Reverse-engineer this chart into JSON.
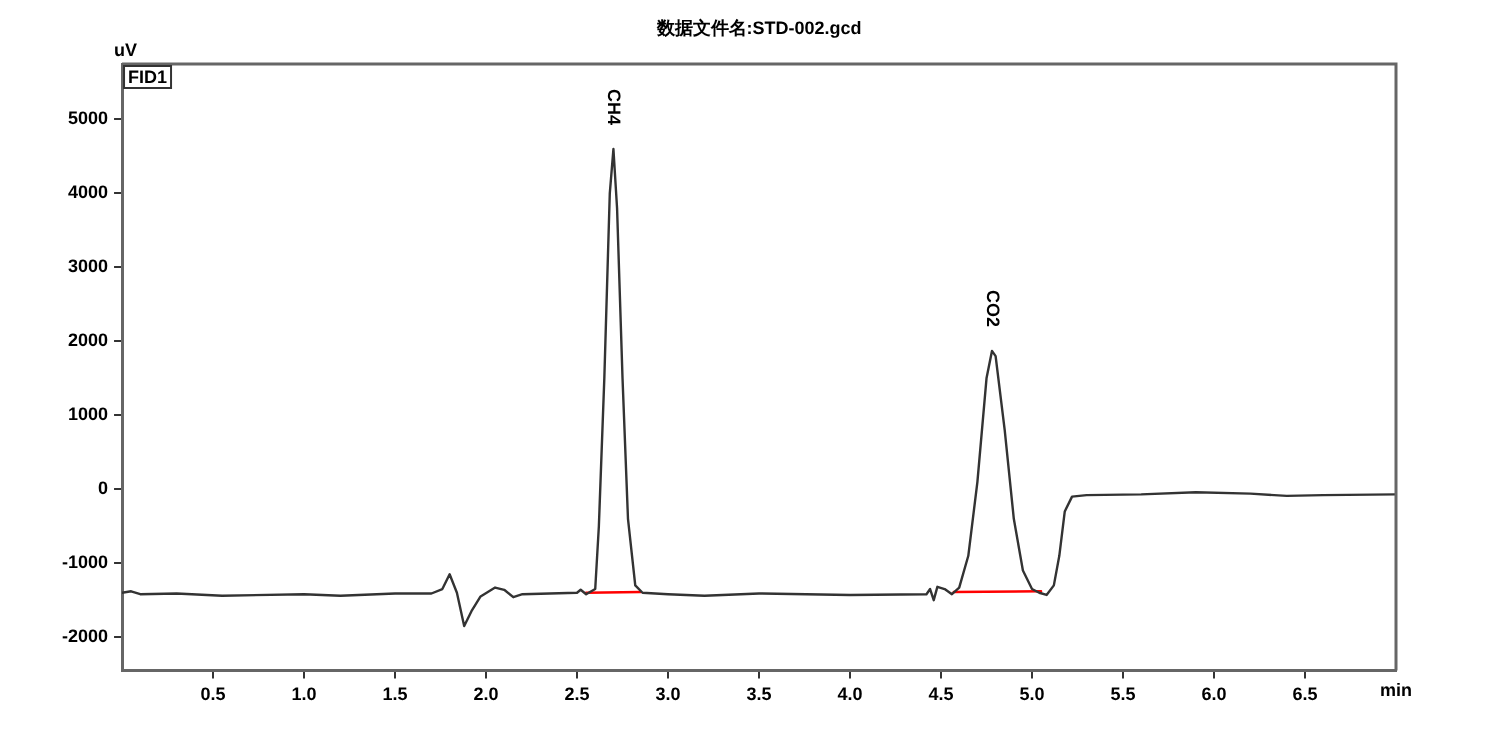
{
  "chart_data": {
    "type": "line",
    "title": "数据文件名:STD-002.gcd",
    "xlabel": "min",
    "ylabel": "uV",
    "annotations": [
      "FID1",
      {
        "text": "CH4",
        "x": 2.7,
        "y": 4600
      },
      {
        "text": "CO2",
        "x": 4.78,
        "y": 1870
      }
    ],
    "x": [
      0,
      0.05,
      0.1,
      0.3,
      0.55,
      1.0,
      1.2,
      1.5,
      1.7,
      1.76,
      1.8,
      1.84,
      1.88,
      1.92,
      1.97,
      2.05,
      2.1,
      2.15,
      2.2,
      2.5,
      2.52,
      2.55,
      2.6,
      2.62,
      2.65,
      2.68,
      2.7,
      2.72,
      2.75,
      2.78,
      2.82,
      2.86,
      3.0,
      3.2,
      3.5,
      4.0,
      4.42,
      4.44,
      4.46,
      4.48,
      4.52,
      4.56,
      4.6,
      4.65,
      4.7,
      4.75,
      4.78,
      4.8,
      4.85,
      4.9,
      4.95,
      5.0,
      5.04,
      5.08,
      5.12,
      5.15,
      5.18,
      5.22,
      5.3,
      5.6,
      5.9,
      6.2,
      6.4,
      6.6,
      7.0
    ],
    "series": [
      {
        "color": "#333333",
        "values": [
          -1400,
          -1380,
          -1420,
          -1410,
          -1440,
          -1420,
          -1440,
          -1410,
          -1410,
          -1350,
          -1150,
          -1400,
          -1850,
          -1650,
          -1450,
          -1330,
          -1360,
          -1460,
          -1420,
          -1400,
          -1360,
          -1420,
          -1350,
          -500,
          1500,
          4000,
          4600,
          3800,
          1500,
          -400,
          -1300,
          -1400,
          -1420,
          -1440,
          -1410,
          -1430,
          -1420,
          -1350,
          -1500,
          -1320,
          -1350,
          -1420,
          -1330,
          -900,
          100,
          1500,
          1870,
          1800,
          800,
          -400,
          -1100,
          -1350,
          -1400,
          -1430,
          -1300,
          -900,
          -300,
          -100,
          -80,
          -70,
          -40,
          -60,
          -90,
          -80,
          -70
        ]
      },
      {
        "type": "line",
        "color": "#ff0000",
        "x": [
          2.55,
          2.85
        ],
        "values": [
          -1400,
          -1390
        ]
      },
      {
        "type": "line",
        "color": "#ff0000",
        "x": [
          4.57,
          5.05
        ],
        "values": [
          -1390,
          -1380
        ]
      }
    ],
    "xlim": [
      0,
      7
    ],
    "xticks": [
      0.5,
      {
        "value": 1,
        "label": "1.0"
      },
      1.5,
      {
        "value": 2,
        "label": "2.0"
      },
      2.5,
      {
        "value": 3,
        "label": "3.0"
      },
      3.5,
      {
        "value": 4,
        "label": "4.0"
      },
      4.5,
      {
        "value": 5,
        "label": "5.0"
      },
      5.5,
      {
        "value": 6,
        "label": "6.0"
      },
      6.5
    ],
    "ylim": [
      -2450,
      5750
    ],
    "yticks": [
      -2000,
      -1000,
      0,
      1000,
      2000,
      3000,
      4000,
      5000
    ],
    "grid": false,
    "legend": false,
    "marker": "none",
    "line_style": "solid"
  }
}
